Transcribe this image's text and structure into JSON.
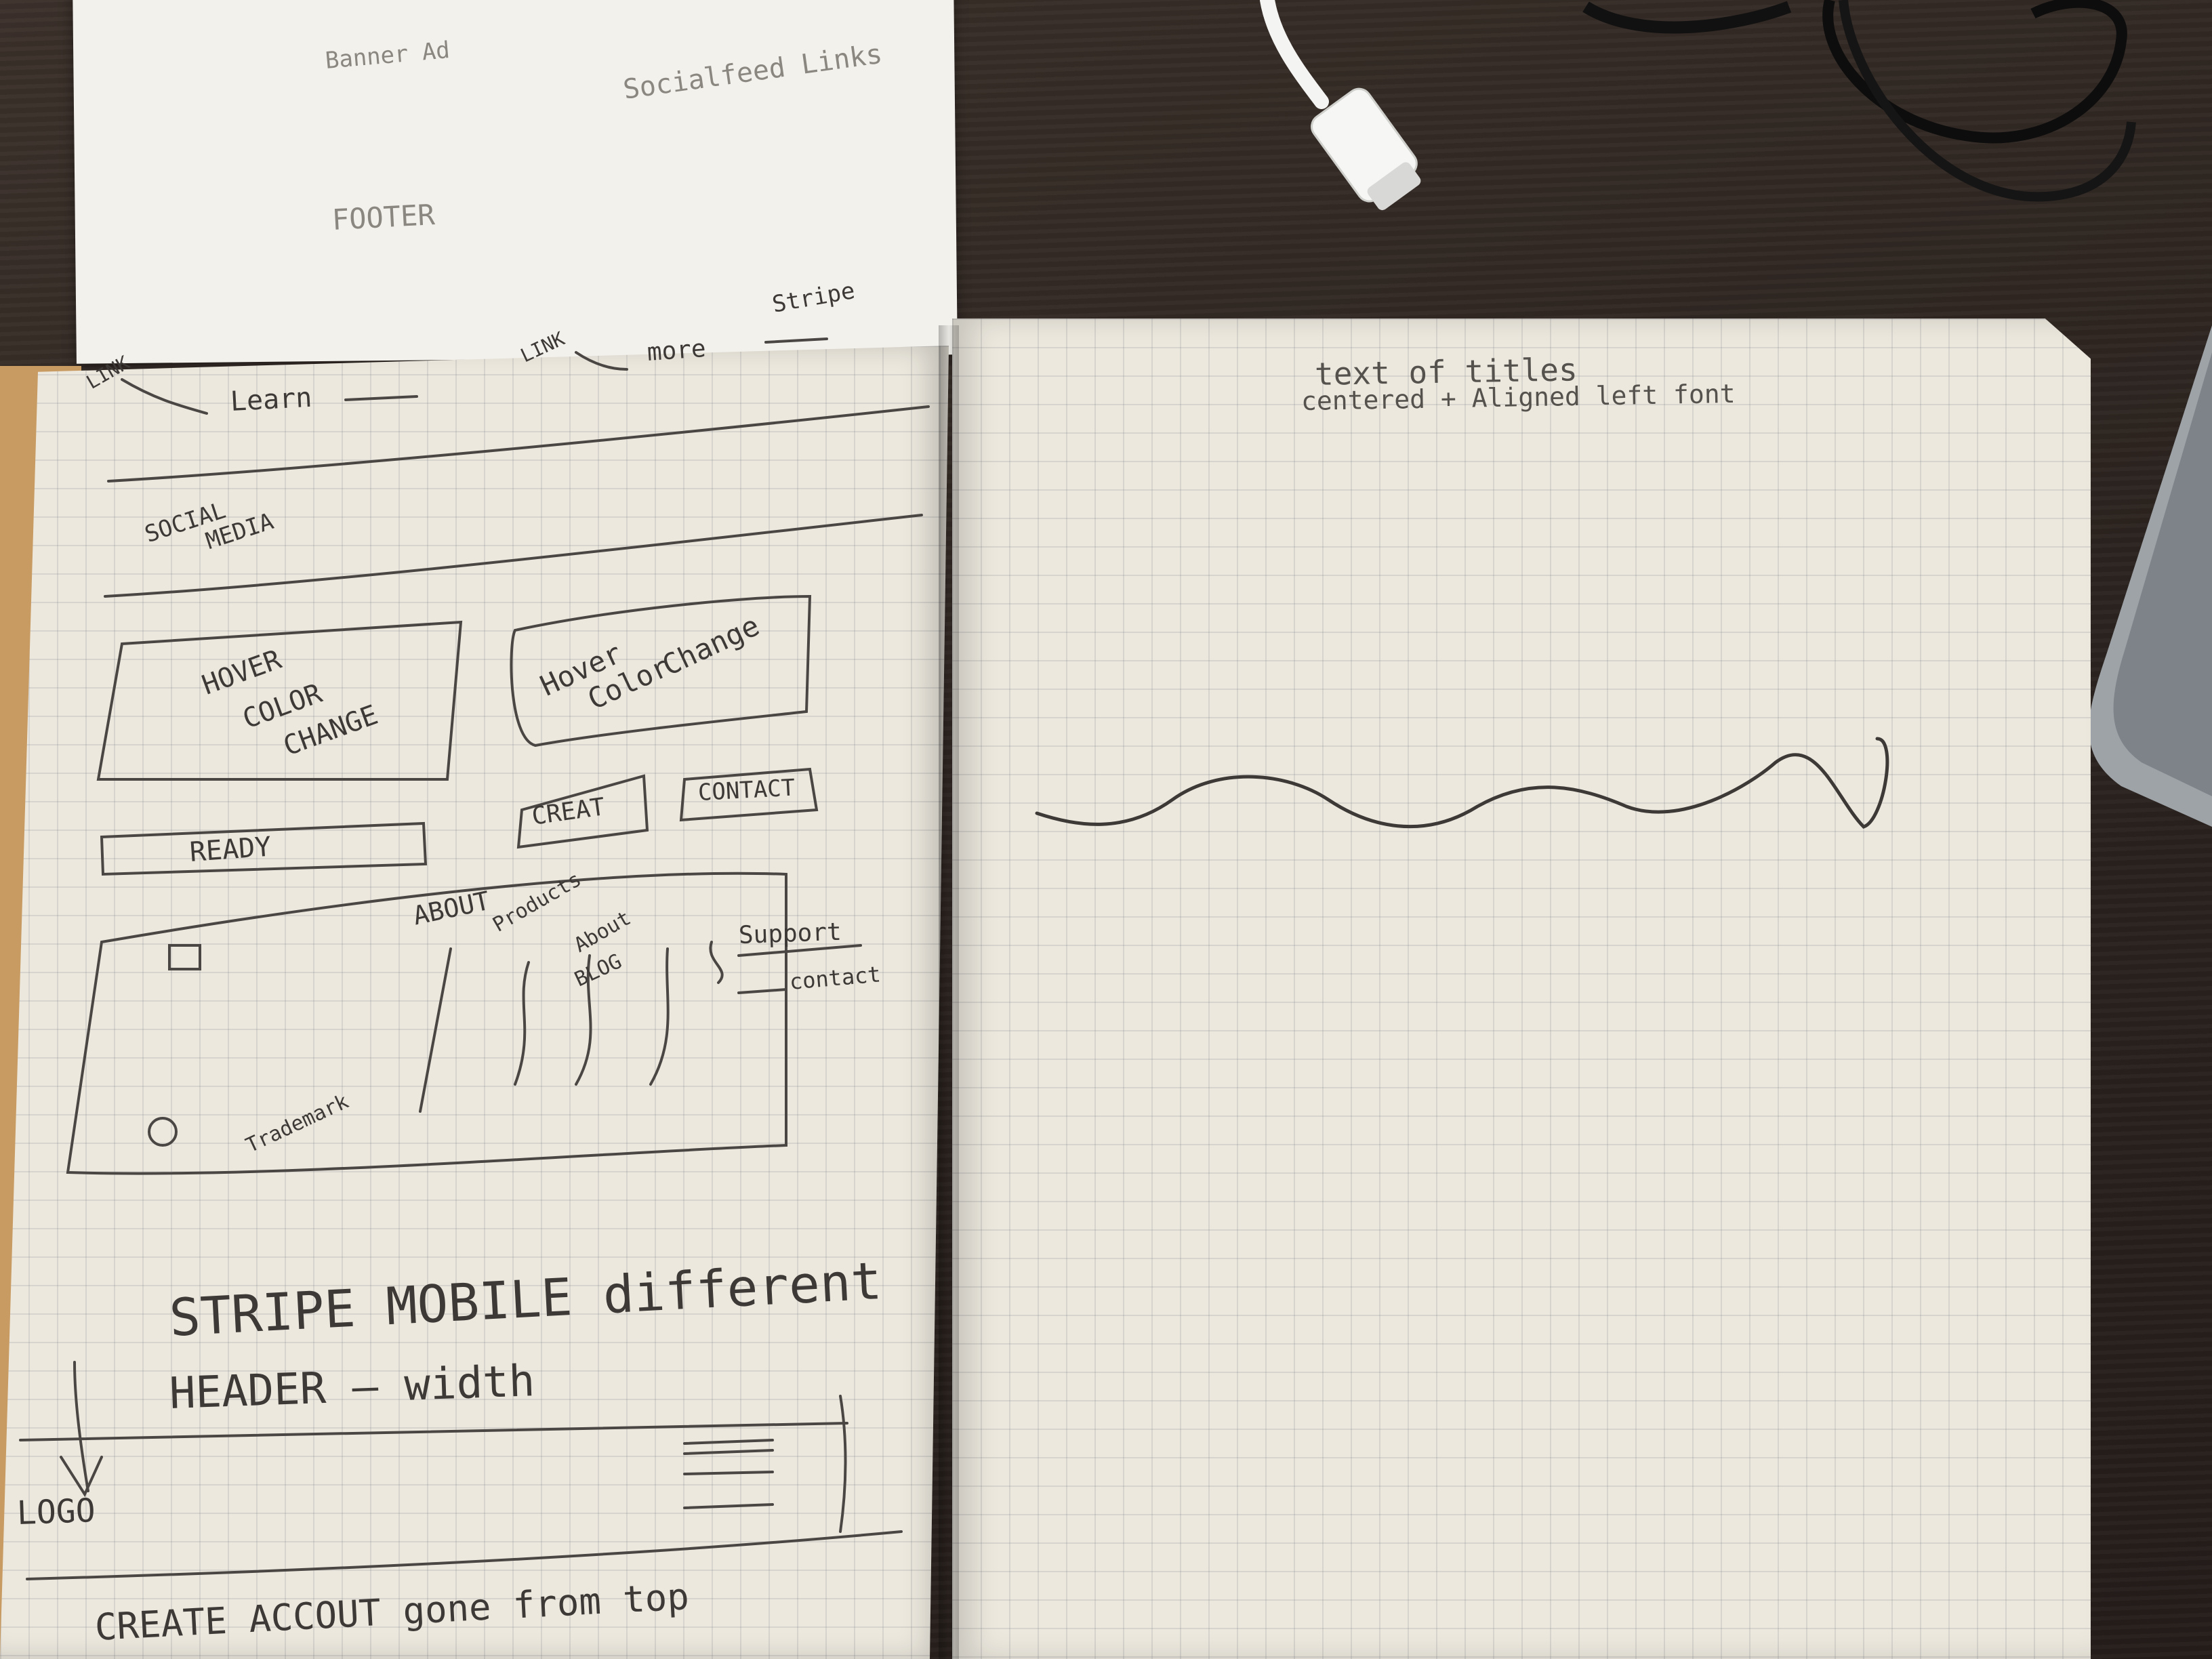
{
  "top_sheet": {
    "banner_ad": "Banner Ad",
    "social_feed_links": "Socialfeed Links",
    "footer": "FOOTER"
  },
  "left_page": {
    "top_link_1": "LINK",
    "top_learn": "Learn",
    "top_link_2": "LINK",
    "top_more": "more",
    "top_stripe": "Stripe",
    "social_media_1": "SOCIAL",
    "social_media_2": "MEDIA",
    "card_1": [
      "HOVER",
      "COLOR",
      "CHANGE"
    ],
    "card_2": [
      "Hover",
      "Color",
      "Change"
    ],
    "btn_ready": "READY",
    "btn_create": "CREAT",
    "btn_contact": "CONTACT",
    "footer_about": "ABOUT",
    "footer_products": "Products",
    "footer_about_2": "About",
    "footer_blog": "BLOG",
    "footer_support": "Support",
    "footer_contact": "contact",
    "trademark": "Trademark",
    "stripe_mobile": "STRIPE MOBILE different",
    "header_width": "HEADER — width",
    "logo": "LOGO",
    "create_account": "CREATE ACCOUT gone from top"
  },
  "right_page": {
    "titles_line_1": "text of titles",
    "titles_line_2": "centered + Aligned left font"
  },
  "colors": {
    "desk": "#2e2622",
    "paper": "#ece8de",
    "pencil": "#4a4643",
    "cable": "#f4f4f2"
  }
}
